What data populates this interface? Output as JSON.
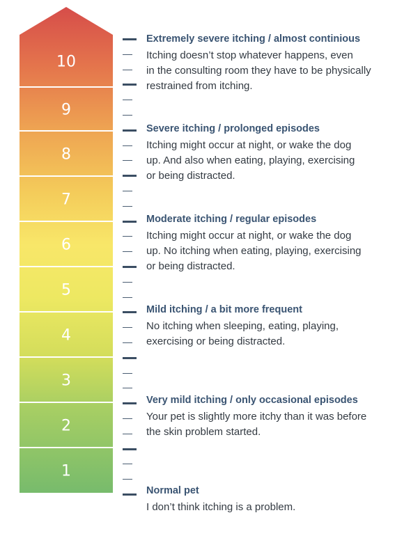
{
  "levels": [
    {
      "number": "10",
      "color": "#d8564a"
    },
    {
      "number": "9",
      "color": "#e8844e"
    },
    {
      "number": "8",
      "color": "#f0a853"
    },
    {
      "number": "7",
      "color": "#f5cd5a"
    },
    {
      "number": "6",
      "color": "#f7e466"
    },
    {
      "number": "5",
      "color": "#efe763"
    },
    {
      "number": "4",
      "color": "#d9df5b"
    },
    {
      "number": "3",
      "color": "#b5d363"
    },
    {
      "number": "2",
      "color": "#8fc768"
    },
    {
      "number": "1",
      "color": "#7ebe6c"
    }
  ],
  "entries": [
    {
      "title": "Extremely severe itching / almost continious",
      "description": [
        "Itching doesn’t stop whatever happens, even",
        "in the consulting room they have to be physically",
        "restrained from itching."
      ]
    },
    {
      "title": "Severe itching / prolonged episodes",
      "description": [
        "Itching might occur at night, or wake the dog",
        "up. And also when eating, playing, exercising",
        "or being distracted."
      ]
    },
    {
      "title": "Moderate itching / regular episodes",
      "description": [
        "Itching might occur at night, or wake the dog",
        "up. No itching when eating, playing, exercising",
        "or being distracted."
      ]
    },
    {
      "title": "Mild itching / a bit more frequent",
      "description": [
        "No itching when sleeping, eating, playing,",
        "exercising or being distracted."
      ]
    },
    {
      "title": "Very mild itching / only occasional episodes",
      "description": [
        "Your pet is slightly more itchy than it was before",
        "the skin problem started."
      ]
    },
    {
      "title": "Normal pet",
      "description": [
        "I don’t think itching is a problem."
      ]
    }
  ]
}
